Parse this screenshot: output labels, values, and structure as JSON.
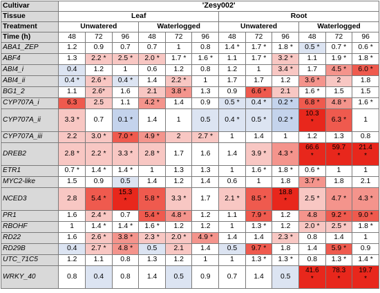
{
  "header": {
    "cultivar_label": "Cultivar",
    "cultivar_value": "'Zesy002'",
    "tissue_label": "Tissue",
    "tissues": [
      "Leaf",
      "Root"
    ],
    "treatment_label": "Treatment",
    "treatments": [
      "Unwatered",
      "Waterlogged",
      "Unwatered",
      "Waterlogged"
    ],
    "time_label": "Time (h)",
    "times": [
      "48",
      "72",
      "96",
      "48",
      "72",
      "96",
      "48",
      "72",
      "96",
      "48",
      "72",
      "96"
    ]
  },
  "colors": {
    "red_strong": "#e8271c",
    "red_med": "#ef5a4e",
    "red_light": "#f4948c",
    "red_pale": "#f8c7c3",
    "blue_pale": "#dce4f2",
    "blue_light": "#c4d3ec",
    "white": "#ffffff",
    "gene_bg": "#d9d9d9"
  },
  "rows": [
    {
      "gene": "ABA1_ZEP",
      "tall": false,
      "cells": [
        {
          "t": "1.2",
          "c": "white"
        },
        {
          "t": "0.9",
          "c": "white"
        },
        {
          "t": "0.7",
          "c": "white"
        },
        {
          "t": "0.7",
          "c": "white"
        },
        {
          "t": "1",
          "c": "white"
        },
        {
          "t": "0.8",
          "c": "white"
        },
        {
          "t": "1.4 *",
          "c": "white"
        },
        {
          "t": "1.7 *",
          "c": "white"
        },
        {
          "t": "1.8 *",
          "c": "white"
        },
        {
          "t": "0.5 *",
          "c": "blue_pale"
        },
        {
          "t": "0.7 *",
          "c": "white"
        },
        {
          "t": "0.6 *",
          "c": "white"
        }
      ]
    },
    {
      "gene": "ABF4",
      "tall": false,
      "cells": [
        {
          "t": "1.3",
          "c": "white"
        },
        {
          "t": "2.2 *",
          "c": "red_pale"
        },
        {
          "t": "2.5 *",
          "c": "red_pale"
        },
        {
          "t": "2.0 *",
          "c": "red_pale"
        },
        {
          "t": "1.7 *",
          "c": "white"
        },
        {
          "t": "1.6 *",
          "c": "white"
        },
        {
          "t": "1.1",
          "c": "white"
        },
        {
          "t": "1.7 *",
          "c": "white"
        },
        {
          "t": "3.2 *",
          "c": "red_pale"
        },
        {
          "t": "1.1",
          "c": "white"
        },
        {
          "t": "1.9 *",
          "c": "white"
        },
        {
          "t": "1.8 *",
          "c": "white"
        }
      ]
    },
    {
      "gene": "ABI4_i",
      "tall": false,
      "cells": [
        {
          "t": "0.4",
          "c": "blue_pale"
        },
        {
          "t": "1.2",
          "c": "white"
        },
        {
          "t": "1",
          "c": "white"
        },
        {
          "t": "0.6",
          "c": "white"
        },
        {
          "t": "1.2",
          "c": "white"
        },
        {
          "t": "0.8",
          "c": "white"
        },
        {
          "t": "1.2",
          "c": "white"
        },
        {
          "t": "1",
          "c": "white"
        },
        {
          "t": "3.4 *",
          "c": "red_pale"
        },
        {
          "t": "1.7",
          "c": "white"
        },
        {
          "t": "4.5 *",
          "c": "red_light"
        },
        {
          "t": "6.0 *",
          "c": "red_med"
        }
      ]
    },
    {
      "gene": "ABI4_ii",
      "tall": false,
      "cells": [
        {
          "t": "0.4 *",
          "c": "blue_pale"
        },
        {
          "t": "2.6 *",
          "c": "red_pale"
        },
        {
          "t": "0.4 *",
          "c": "blue_pale"
        },
        {
          "t": "1.4",
          "c": "white"
        },
        {
          "t": "2.2 *",
          "c": "red_pale"
        },
        {
          "t": "1",
          "c": "white"
        },
        {
          "t": "1.7",
          "c": "white"
        },
        {
          "t": "1.7",
          "c": "white"
        },
        {
          "t": "1.2",
          "c": "white"
        },
        {
          "t": "3.6 *",
          "c": "red_light"
        },
        {
          "t": "2",
          "c": "red_pale"
        },
        {
          "t": "1.8",
          "c": "white"
        }
      ]
    },
    {
      "gene": "BG1_2",
      "tall": false,
      "cells": [
        {
          "t": "1.1",
          "c": "white"
        },
        {
          "t": "2.6*",
          "c": "red_pale"
        },
        {
          "t": "1.6",
          "c": "white"
        },
        {
          "t": "2.1",
          "c": "red_pale"
        },
        {
          "t": "3.8 *",
          "c": "red_light"
        },
        {
          "t": "1.3",
          "c": "white"
        },
        {
          "t": "0.9",
          "c": "white"
        },
        {
          "t": "6.6 *",
          "c": "red_med"
        },
        {
          "t": "2.1",
          "c": "red_pale"
        },
        {
          "t": "1.6 *",
          "c": "white"
        },
        {
          "t": "1.5",
          "c": "white"
        },
        {
          "t": "1.5",
          "c": "white"
        }
      ]
    },
    {
      "gene": "CYP707A_i",
      "tall": false,
      "cells": [
        {
          "t": "6.3",
          "c": "red_med"
        },
        {
          "t": "2.5",
          "c": "red_pale"
        },
        {
          "t": "1.1",
          "c": "white"
        },
        {
          "t": "4.2 *",
          "c": "red_light"
        },
        {
          "t": "1.4",
          "c": "white"
        },
        {
          "t": "0.9",
          "c": "white"
        },
        {
          "t": "0.5 *",
          "c": "blue_pale"
        },
        {
          "t": "0.4 *",
          "c": "blue_pale"
        },
        {
          "t": "0.2 *",
          "c": "blue_light"
        },
        {
          "t": "6.8 *",
          "c": "red_med"
        },
        {
          "t": "4.8 *",
          "c": "red_light"
        },
        {
          "t": "1.6 *",
          "c": "white"
        }
      ]
    },
    {
      "gene": "CYP707A_ii",
      "tall": true,
      "cells": [
        {
          "t": "3.3 *",
          "c": "red_pale"
        },
        {
          "t": "0.7",
          "c": "white"
        },
        {
          "t": "0.1 *",
          "c": "blue_light"
        },
        {
          "t": "1.4",
          "c": "white"
        },
        {
          "t": "1",
          "c": "white"
        },
        {
          "t": "0.5",
          "c": "blue_pale"
        },
        {
          "t": "0.4 *",
          "c": "blue_pale"
        },
        {
          "t": "0.5 *",
          "c": "blue_pale"
        },
        {
          "t": "0.2 *",
          "c": "blue_light"
        },
        {
          "t": "10.3",
          "s": "*",
          "c": "red_strong",
          "big": true
        },
        {
          "t": "6.3 *",
          "c": "red_med"
        },
        {
          "t": "1",
          "c": "white"
        }
      ]
    },
    {
      "gene": "CYP707A_iii",
      "tall": false,
      "cells": [
        {
          "t": "2.2",
          "c": "red_pale"
        },
        {
          "t": "3.0 *",
          "c": "red_pale"
        },
        {
          "t": "7.0 *",
          "c": "red_med"
        },
        {
          "t": "4.9 *",
          "c": "red_light"
        },
        {
          "t": "2",
          "c": "red_pale"
        },
        {
          "t": "2.7 *",
          "c": "red_pale"
        },
        {
          "t": "1",
          "c": "white"
        },
        {
          "t": "1.4",
          "c": "white"
        },
        {
          "t": "1",
          "c": "white"
        },
        {
          "t": "1.2",
          "c": "white"
        },
        {
          "t": "1.3",
          "c": "white"
        },
        {
          "t": "0.8",
          "c": "white"
        }
      ]
    },
    {
      "gene": "DREB2",
      "tall": true,
      "cells": [
        {
          "t": "2.8 *",
          "c": "red_pale"
        },
        {
          "t": "2.2 *",
          "c": "red_pale"
        },
        {
          "t": "3.3 *",
          "c": "red_pale"
        },
        {
          "t": "2.8 *",
          "c": "red_pale"
        },
        {
          "t": "1.7",
          "c": "white"
        },
        {
          "t": "1.6",
          "c": "white"
        },
        {
          "t": "1.4",
          "c": "white"
        },
        {
          "t": "3.9 *",
          "c": "red_pale"
        },
        {
          "t": "4.3 *",
          "c": "red_light"
        },
        {
          "t": "66.6",
          "s": "*",
          "c": "red_strong",
          "big": true
        },
        {
          "t": "59.7",
          "s": "*",
          "c": "red_strong",
          "big": true
        },
        {
          "t": "21.4",
          "s": "*",
          "c": "red_strong",
          "big": true
        }
      ]
    },
    {
      "gene": "ETR1",
      "tall": false,
      "cells": [
        {
          "t": "0.7 *",
          "c": "white"
        },
        {
          "t": "1.4 *",
          "c": "white"
        },
        {
          "t": "1.4 *",
          "c": "white"
        },
        {
          "t": "1",
          "c": "white"
        },
        {
          "t": "1.3",
          "c": "white"
        },
        {
          "t": "1.3",
          "c": "white"
        },
        {
          "t": "1",
          "c": "white"
        },
        {
          "t": "1.6 *",
          "c": "white"
        },
        {
          "t": "1.8 *",
          "c": "white"
        },
        {
          "t": "0.6 *",
          "c": "white"
        },
        {
          "t": "1",
          "c": "white"
        },
        {
          "t": "1",
          "c": "white"
        }
      ]
    },
    {
      "gene": "MYC2-like",
      "tall": false,
      "cells": [
        {
          "t": "1.5",
          "c": "white"
        },
        {
          "t": "0.9",
          "c": "white"
        },
        {
          "t": "0.5",
          "c": "blue_pale"
        },
        {
          "t": "1.4",
          "c": "white"
        },
        {
          "t": "1.2",
          "c": "white"
        },
        {
          "t": "1.4",
          "c": "white"
        },
        {
          "t": "0.6",
          "c": "white"
        },
        {
          "t": "1",
          "c": "white"
        },
        {
          "t": "1.8",
          "c": "white"
        },
        {
          "t": "3.7 *",
          "c": "red_light"
        },
        {
          "t": "1.8",
          "c": "white"
        },
        {
          "t": "2.1",
          "c": "white"
        }
      ]
    },
    {
      "gene": "NCED3",
      "tall": true,
      "cells": [
        {
          "t": "2.8",
          "c": "red_pale"
        },
        {
          "t": "5.4 *",
          "c": "red_med"
        },
        {
          "t": "15.3",
          "s": "*",
          "c": "red_strong",
          "big": true
        },
        {
          "t": "5.8 *",
          "c": "red_med"
        },
        {
          "t": "3.3 *",
          "c": "red_pale"
        },
        {
          "t": "1.7",
          "c": "white"
        },
        {
          "t": "2.1 *",
          "c": "red_pale"
        },
        {
          "t": "8.5 *",
          "c": "red_med"
        },
        {
          "t": "18.8",
          "s": "*",
          "c": "red_strong",
          "big": true
        },
        {
          "t": "2.5 *",
          "c": "red_pale"
        },
        {
          "t": "4.7 *",
          "c": "red_light"
        },
        {
          "t": "4.3 *",
          "c": "red_light"
        }
      ]
    },
    {
      "gene": "PR1",
      "tall": false,
      "cells": [
        {
          "t": "1.6",
          "c": "white"
        },
        {
          "t": "2.4 *",
          "c": "red_pale"
        },
        {
          "t": "0.7",
          "c": "white"
        },
        {
          "t": "5.4 *",
          "c": "red_med"
        },
        {
          "t": "4.8 *",
          "c": "red_light"
        },
        {
          "t": "1.2",
          "c": "white"
        },
        {
          "t": "1.1",
          "c": "white"
        },
        {
          "t": "7.9 *",
          "c": "red_med"
        },
        {
          "t": "1.2",
          "c": "white"
        },
        {
          "t": "4.8",
          "c": "red_light"
        },
        {
          "t": "9.2 *",
          "c": "red_med"
        },
        {
          "t": "9.0 *",
          "c": "red_med"
        }
      ]
    },
    {
      "gene": "RBOHF",
      "tall": false,
      "cells": [
        {
          "t": "1",
          "c": "white"
        },
        {
          "t": "1.4 *",
          "c": "white"
        },
        {
          "t": "1.4 *",
          "c": "white"
        },
        {
          "t": "1.6 *",
          "c": "white"
        },
        {
          "t": "1.2",
          "c": "white"
        },
        {
          "t": "1.2",
          "c": "white"
        },
        {
          "t": "1",
          "c": "white"
        },
        {
          "t": "1.3 *",
          "c": "white"
        },
        {
          "t": "1.2",
          "c": "white"
        },
        {
          "t": "2.0 *",
          "c": "red_pale"
        },
        {
          "t": "2.5 *",
          "c": "red_pale"
        },
        {
          "t": "1.8 *",
          "c": "white"
        }
      ]
    },
    {
      "gene": "RD22",
      "tall": false,
      "cells": [
        {
          "t": "1.6",
          "c": "white"
        },
        {
          "t": "2.6 *",
          "c": "red_pale"
        },
        {
          "t": "3.8 *",
          "c": "red_light"
        },
        {
          "t": "2.3 *",
          "c": "red_pale"
        },
        {
          "t": "2.0 *",
          "c": "red_pale"
        },
        {
          "t": "4.9 *",
          "c": "red_light"
        },
        {
          "t": "1.4",
          "c": "white"
        },
        {
          "t": "1.4",
          "c": "white"
        },
        {
          "t": "2.3 *",
          "c": "red_pale"
        },
        {
          "t": "0.8",
          "c": "white"
        },
        {
          "t": "1.4",
          "c": "white"
        },
        {
          "t": "1",
          "c": "white"
        }
      ]
    },
    {
      "gene": "RD29B",
      "tall": false,
      "cells": [
        {
          "t": "0.4",
          "c": "blue_pale"
        },
        {
          "t": "2.7 *",
          "c": "red_pale"
        },
        {
          "t": "4.8 *",
          "c": "red_light"
        },
        {
          "t": "0.5",
          "c": "blue_pale"
        },
        {
          "t": "2.1",
          "c": "red_pale"
        },
        {
          "t": "1.4",
          "c": "white"
        },
        {
          "t": "0.5",
          "c": "blue_pale"
        },
        {
          "t": "9.7 *",
          "c": "red_med"
        },
        {
          "t": "1.8",
          "c": "white"
        },
        {
          "t": "1.4",
          "c": "white"
        },
        {
          "t": "5.9 *",
          "c": "red_med"
        },
        {
          "t": "0.9",
          "c": "white"
        }
      ]
    },
    {
      "gene": "UTC_71C5",
      "tall": false,
      "cells": [
        {
          "t": "1.2",
          "c": "white"
        },
        {
          "t": "1.1",
          "c": "white"
        },
        {
          "t": "0.8",
          "c": "white"
        },
        {
          "t": "1.3",
          "c": "white"
        },
        {
          "t": "1.2",
          "c": "white"
        },
        {
          "t": "1",
          "c": "white"
        },
        {
          "t": "1",
          "c": "white"
        },
        {
          "t": "1.3 *",
          "c": "white"
        },
        {
          "t": "1.3 *",
          "c": "white"
        },
        {
          "t": "0.8",
          "c": "white"
        },
        {
          "t": "1.3 *",
          "c": "white"
        },
        {
          "t": "1.4 *",
          "c": "white"
        }
      ]
    },
    {
      "gene": "WRKY_40",
      "tall": true,
      "cells": [
        {
          "t": "0.8",
          "c": "white"
        },
        {
          "t": "0.4",
          "c": "blue_pale"
        },
        {
          "t": "0.8",
          "c": "white"
        },
        {
          "t": "1.4",
          "c": "white"
        },
        {
          "t": "0.5",
          "c": "blue_pale"
        },
        {
          "t": "0.9",
          "c": "white"
        },
        {
          "t": "0.7",
          "c": "white"
        },
        {
          "t": "1.4",
          "c": "white"
        },
        {
          "t": "0.5",
          "c": "blue_pale"
        },
        {
          "t": "41.6",
          "s": "*",
          "c": "red_strong",
          "big": true
        },
        {
          "t": "78.3",
          "s": "*",
          "c": "red_strong",
          "big": true
        },
        {
          "t": "19.7",
          "s": "*",
          "c": "red_strong",
          "big": true
        }
      ]
    }
  ]
}
